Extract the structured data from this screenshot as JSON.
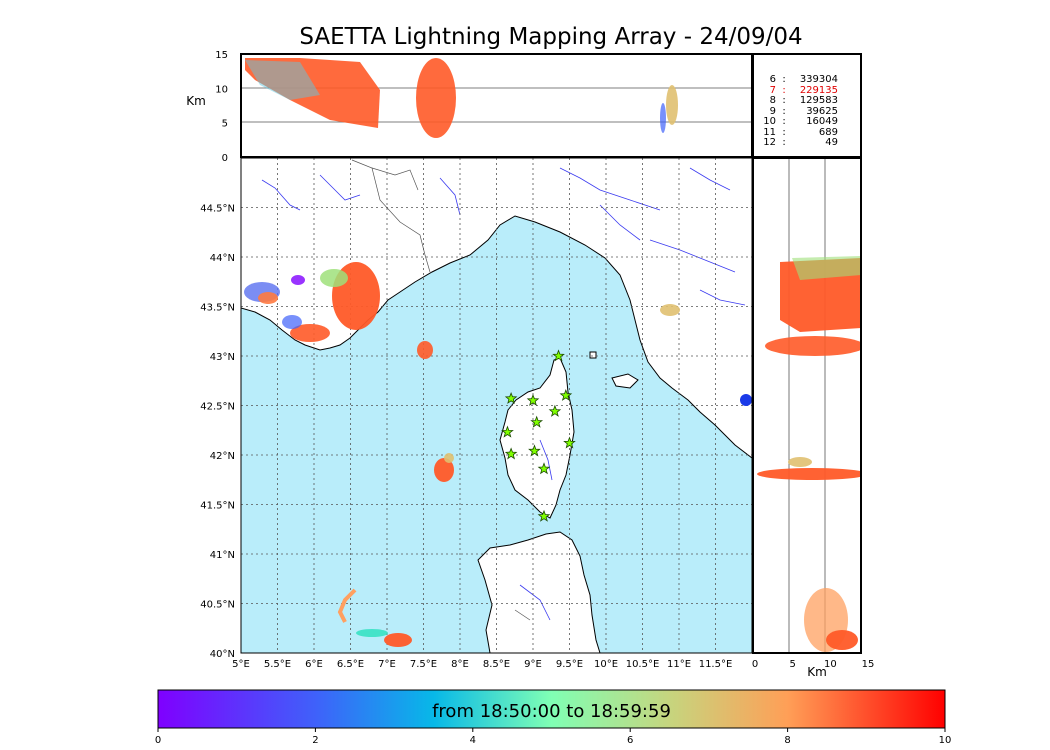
{
  "title": "SAETTA Lightning Mapping Array - 24/09/04",
  "top_panel": {
    "ylabel": "Km",
    "yticks": [
      "0",
      "5",
      "10",
      "15"
    ]
  },
  "right_panel": {
    "xlabel": "Km",
    "xticks": [
      "0",
      "5",
      "10",
      "15"
    ]
  },
  "map": {
    "lon_ticks": [
      "5°E",
      "5.5°E",
      "6°E",
      "6.5°E",
      "7°E",
      "7.5°E",
      "8°E",
      "8.5°E",
      "9°E",
      "9.5°E",
      "10°E",
      "10.5°E",
      "11°E",
      "11.5°E"
    ],
    "lat_ticks": [
      "40°N",
      "40.5°N",
      "41°N",
      "41.5°N",
      "42°N",
      "42.5°N",
      "43°N",
      "43.5°N",
      "44°N",
      "44.5°N"
    ],
    "lon_range": [
      5,
      12
    ],
    "lat_range": [
      40,
      45
    ],
    "sea_color": "#b9edfa",
    "land_color": "#ffffff",
    "station_marker": "star-icon",
    "station_color": "#80ff00"
  },
  "stats": [
    {
      "k": "6",
      "sep": ":",
      "v": "339304",
      "highlight": false
    },
    {
      "k": "7",
      "sep": ":",
      "v": "229135",
      "highlight": true
    },
    {
      "k": "8",
      "sep": ":",
      "v": "129583",
      "highlight": false
    },
    {
      "k": "9",
      "sep": ":",
      "v": "39625",
      "highlight": false
    },
    {
      "k": "10",
      "sep": ":",
      "v": "16049",
      "highlight": false
    },
    {
      "k": "11",
      "sep": ":",
      "v": "689",
      "highlight": false
    },
    {
      "k": "12",
      "sep": ":",
      "v": "49",
      "highlight": false
    }
  ],
  "colorbar": {
    "caption": "from 18:50:00 to 18:59:59",
    "ticks": [
      "0",
      "2",
      "4",
      "6",
      "8",
      "10"
    ],
    "range": [
      0,
      10
    ],
    "colormap": "rainbow"
  }
}
